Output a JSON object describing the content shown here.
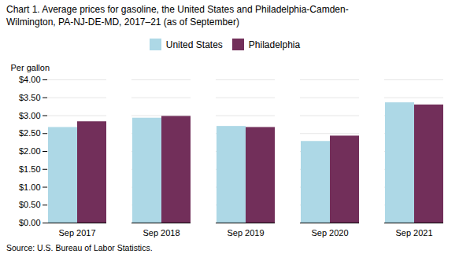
{
  "chart_data": {
    "type": "bar",
    "title": "Chart 1. Average prices for gasoline, the United States and Philadelphia-Camden-\nWilmington, PA-NJ-DE-MD, 2017–21 (as of September)",
    "ylabel": "Per gallon",
    "source": "Source: U.S. Bureau of Labor Statistics.",
    "categories": [
      "Sep 2017",
      "Sep 2018",
      "Sep 2019",
      "Sep 2020",
      "Sep 2021"
    ],
    "series": [
      {
        "name": "United States",
        "color": "#ADD8E6",
        "values": [
          2.67,
          2.93,
          2.7,
          2.28,
          3.36
        ]
      },
      {
        "name": "Philadelphia",
        "color": "#722F5A",
        "values": [
          2.83,
          2.98,
          2.67,
          2.43,
          3.3
        ]
      }
    ],
    "ylim": [
      0,
      4.0
    ],
    "yticks": [
      {
        "value": 0.0,
        "label": "$0.00"
      },
      {
        "value": 0.5,
        "label": "$0.50"
      },
      {
        "value": 1.0,
        "label": "$1.00"
      },
      {
        "value": 1.5,
        "label": "$1.50"
      },
      {
        "value": 2.0,
        "label": "$2.00"
      },
      {
        "value": 2.5,
        "label": "$2.50"
      },
      {
        "value": 3.0,
        "label": "$3.00"
      },
      {
        "value": 3.5,
        "label": "$3.50"
      },
      {
        "value": 4.0,
        "label": "$4.00"
      }
    ],
    "grid": true,
    "legend": "top"
  }
}
